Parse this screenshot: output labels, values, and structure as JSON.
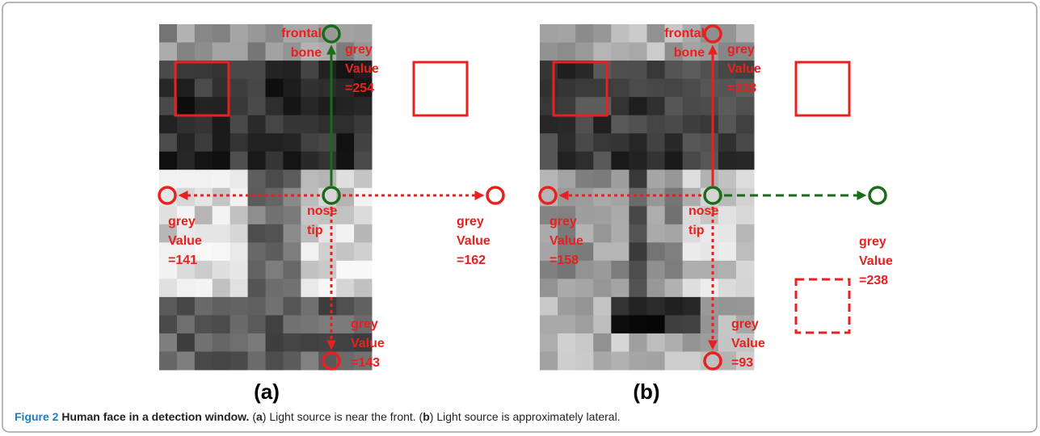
{
  "figure": {
    "panels": [
      {
        "label": "(a)",
        "annotations": [
          {
            "lines": [
              "frontal",
              "bone"
            ]
          },
          {
            "lines": [
              "grey",
              "Value",
              "=254"
            ]
          },
          {
            "lines": [
              "nose",
              "tip"
            ]
          },
          {
            "lines": [
              "grey",
              "Value",
              "=141"
            ]
          },
          {
            "lines": [
              "grey",
              "Value",
              "=162"
            ]
          },
          {
            "lines": [
              "grey",
              "Value",
              "=143"
            ]
          }
        ]
      },
      {
        "label": "(b)",
        "annotations": [
          {
            "lines": [
              "frontal",
              "bone"
            ]
          },
          {
            "lines": [
              "grey",
              "Value",
              "=228"
            ]
          },
          {
            "lines": [
              "nose",
              "tip"
            ]
          },
          {
            "lines": [
              "grey",
              "Value",
              "=158"
            ]
          },
          {
            "lines": [
              "grey",
              "Value",
              "=238"
            ]
          },
          {
            "lines": [
              "grey",
              "Value",
              "=93"
            ]
          }
        ]
      }
    ],
    "caption": {
      "label": "Figure 2",
      "title": "Human face in a detection window.",
      "segments": [
        {
          "text": "(",
          "bold": false
        },
        {
          "text": "a",
          "bold": true
        },
        {
          "text": ") Light source is near the front. (",
          "bold": false
        },
        {
          "text": "b",
          "bold": true
        },
        {
          "text": ") Light source is approximately lateral.",
          "bold": false
        }
      ]
    }
  }
}
